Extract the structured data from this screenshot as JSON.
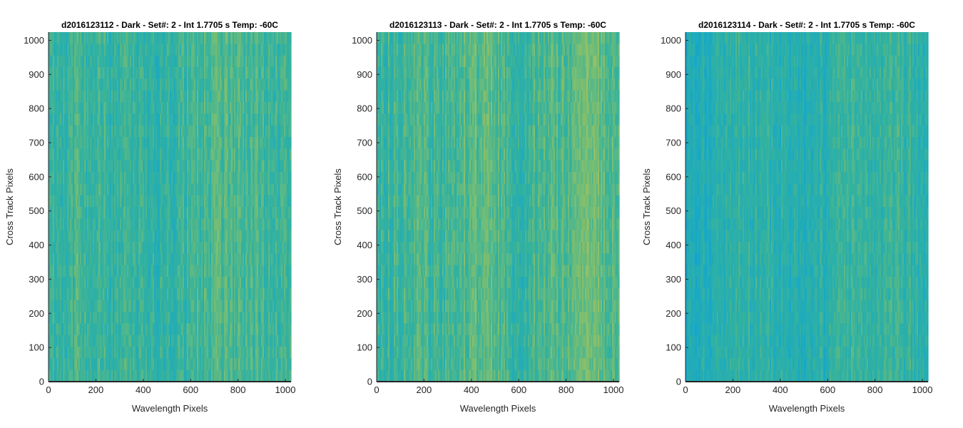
{
  "chart_data": [
    {
      "type": "heatmap",
      "title": "d2016123112 - Dark - Set#: 2 - Int 1.7705 s Temp: -60C",
      "xlabel": "Wavelength Pixels",
      "ylabel": "Cross Track Pixels",
      "xlim": [
        0,
        1024
      ],
      "ylim": [
        0,
        1024
      ],
      "xticks": [
        0,
        200,
        400,
        600,
        800,
        1000
      ],
      "yticks": [
        0,
        100,
        200,
        300,
        400,
        500,
        600,
        700,
        800,
        900,
        1000
      ],
      "colormap": "parula",
      "column_level_profile": [
        0.52,
        0.5,
        0.55,
        0.52,
        0.48,
        0.5,
        0.45,
        0.47,
        0.5,
        0.55,
        0.58,
        0.6,
        0.55,
        0.57,
        0.53,
        0.5
      ],
      "noise": 0.22,
      "seed": 112
    },
    {
      "type": "heatmap",
      "title": "d2016123113 - Dark - Set#: 2 - Int 1.7705 s Temp: -60C",
      "xlabel": "Wavelength Pixels",
      "ylabel": "Cross Track Pixels",
      "xlim": [
        0,
        1024
      ],
      "ylim": [
        0,
        1024
      ],
      "xticks": [
        0,
        200,
        400,
        600,
        800,
        1000
      ],
      "yticks": [
        0,
        100,
        200,
        300,
        400,
        500,
        600,
        700,
        800,
        900,
        1000
      ],
      "colormap": "parula",
      "column_level_profile": [
        0.5,
        0.52,
        0.58,
        0.56,
        0.5,
        0.58,
        0.66,
        0.62,
        0.53,
        0.5,
        0.55,
        0.6,
        0.62,
        0.7,
        0.66,
        0.6
      ],
      "noise": 0.22,
      "seed": 113
    },
    {
      "type": "heatmap",
      "title": "d2016123114 - Dark - Set#: 2 - Int 1.7705 s Temp: -60C",
      "xlabel": "Wavelength Pixels",
      "ylabel": "Cross Track Pixels",
      "xlim": [
        0,
        1024
      ],
      "ylim": [
        0,
        1024
      ],
      "xticks": [
        0,
        200,
        400,
        600,
        800,
        1000
      ],
      "yticks": [
        0,
        100,
        200,
        300,
        400,
        500,
        600,
        700,
        800,
        900,
        1000
      ],
      "colormap": "parula",
      "column_level_profile": [
        0.3,
        0.36,
        0.42,
        0.45,
        0.47,
        0.45,
        0.42,
        0.36,
        0.38,
        0.45,
        0.5,
        0.48,
        0.45,
        0.5,
        0.46,
        0.42
      ],
      "noise": 0.2,
      "seed": 114
    }
  ]
}
